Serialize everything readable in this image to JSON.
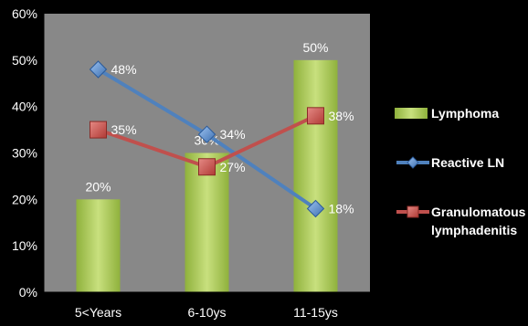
{
  "chart_data": {
    "type": "bar",
    "title": "",
    "xlabel": "",
    "ylabel": "",
    "categories": [
      "5<Years",
      "6-10ys",
      "11-15ys"
    ],
    "ylim": [
      0,
      60
    ],
    "yticks": [
      "0%",
      "10%",
      "20%",
      "30%",
      "40%",
      "50%",
      "60%"
    ],
    "grid": false,
    "legend_position": "right",
    "series": [
      {
        "name": "Lymphoma",
        "type": "bar",
        "values": [
          20,
          30,
          50
        ],
        "labels": [
          "20%",
          "30%",
          "50%"
        ],
        "color": "#a6c956"
      },
      {
        "name": "Reactive LN",
        "type": "line",
        "marker": "diamond",
        "values": [
          48,
          34,
          18
        ],
        "labels": [
          "48%",
          "34%",
          "18%"
        ],
        "color": "#4f81bd"
      },
      {
        "name": "Granulomatous lymphadenitis",
        "legend_lines": [
          "Granulomatous",
          "lymphadenitis"
        ],
        "type": "line",
        "marker": "square",
        "values": [
          35,
          27,
          38
        ],
        "labels": [
          "35%",
          "27%",
          "38%"
        ],
        "color": "#c0504d"
      }
    ]
  },
  "colors": {
    "background": "#000000",
    "plot_area": "#888888",
    "text": "#ffffff",
    "axis": "#000000"
  }
}
